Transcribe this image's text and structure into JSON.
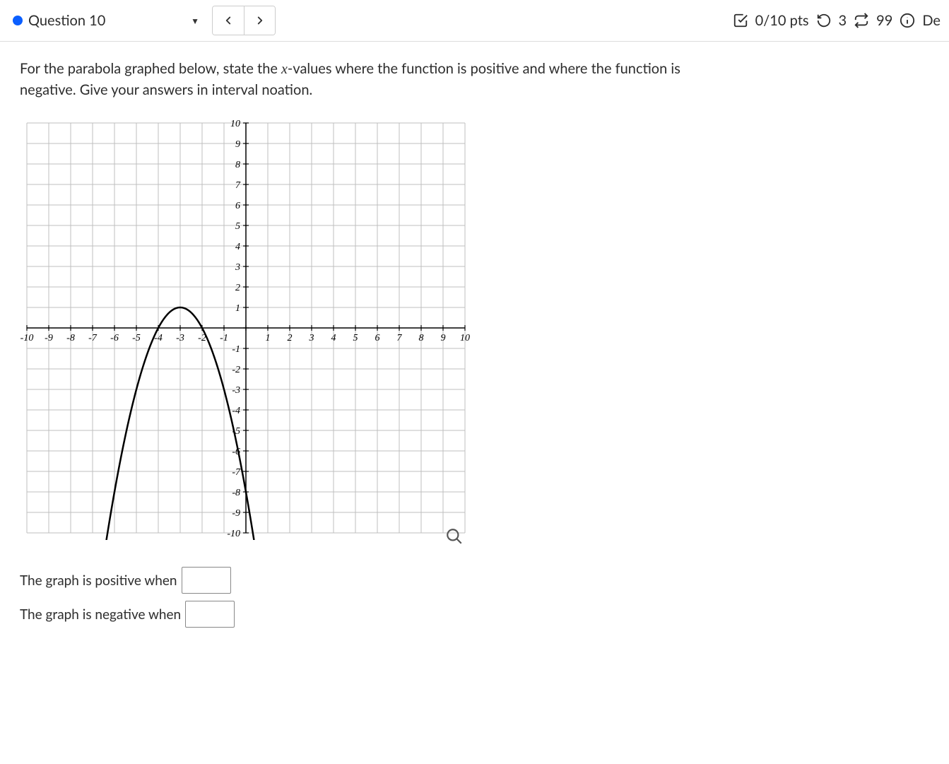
{
  "header": {
    "question_label": "Question 10",
    "points_text": "0/10 pts",
    "attempts_remaining": "3",
    "time_or_count": "99",
    "details_label": "De"
  },
  "prompt": {
    "line1_pre": "For the parabola graphed below, state the ",
    "var": "x",
    "line1_post": "-values where the function is positive and where the function is",
    "line2": "negative. Give your answers in interval noation."
  },
  "graph": {
    "xlim": [
      -10,
      10
    ],
    "ylim": [
      -10,
      10
    ],
    "xtick_step": 1,
    "ytick_step": 1,
    "grid_color": "#bfbfbf",
    "axis_color": "#000000",
    "tick_label_color": "#000000",
    "tick_font_size": 14,
    "background_color": "#ffffff",
    "curve": {
      "type": "parabola",
      "vertex": [
        -3,
        1
      ],
      "a": -1,
      "color": "#000000",
      "width": 2.5,
      "x_draw_min": -6.8,
      "x_draw_max": 0.8
    }
  },
  "answers": {
    "positive_label": "The graph is positive when",
    "negative_label": "The graph is negative when",
    "positive_value": "",
    "negative_value": ""
  }
}
